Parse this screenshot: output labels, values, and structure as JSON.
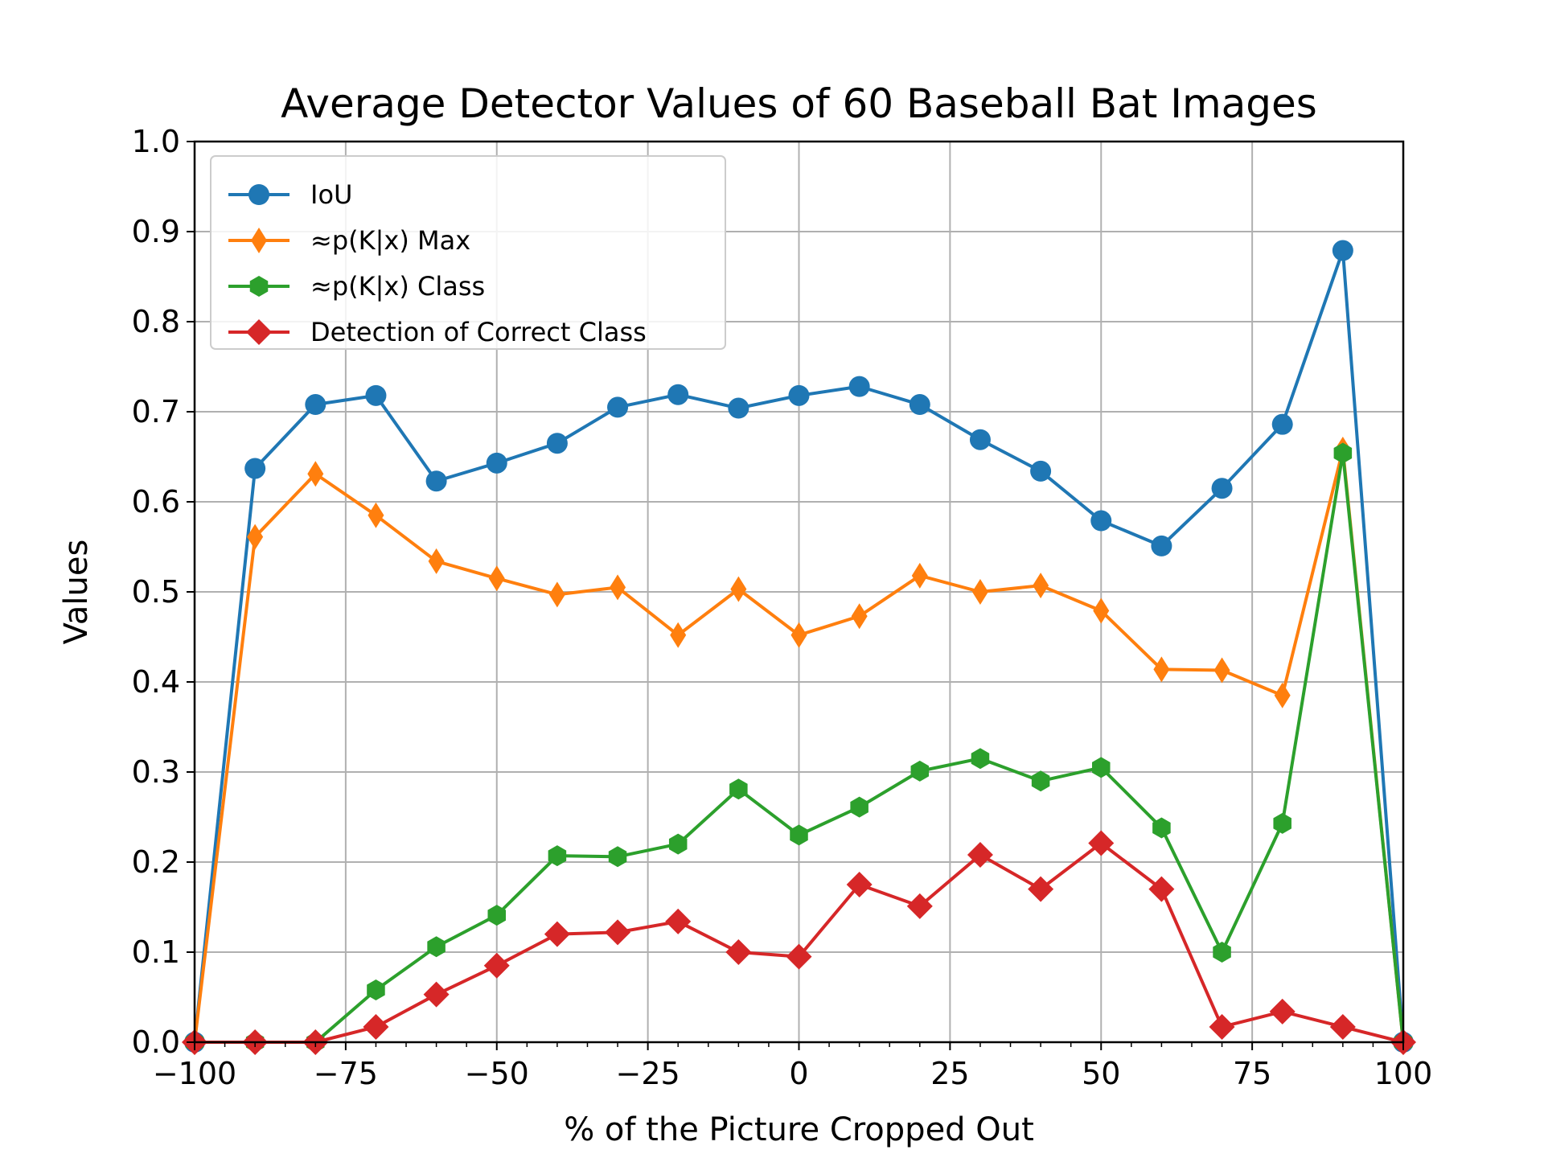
{
  "chart_data": {
    "type": "line",
    "title": "Average Detector Values of 60 Baseball Bat Images",
    "xlabel": "% of the Picture Cropped Out",
    "ylabel": "Values",
    "xlim": [
      -100,
      100
    ],
    "ylim": [
      0.0,
      1.0
    ],
    "x_ticks": [
      -100,
      -75,
      -50,
      -25,
      0,
      25,
      50,
      75,
      100
    ],
    "x_tick_labels": [
      "−100",
      "−75",
      "−50",
      "−25",
      "0",
      "25",
      "50",
      "75",
      "100"
    ],
    "y_ticks": [
      0.0,
      0.1,
      0.2,
      0.3,
      0.4,
      0.5,
      0.6,
      0.7,
      0.8,
      0.9,
      1.0
    ],
    "y_tick_labels": [
      "0.0",
      "0.1",
      "0.2",
      "0.3",
      "0.4",
      "0.5",
      "0.6",
      "0.7",
      "0.8",
      "0.9",
      "1.0"
    ],
    "grid": true,
    "legend_position": "top-left",
    "x": [
      -100,
      -90,
      -80,
      -70,
      -60,
      -50,
      -40,
      -30,
      -20,
      -10,
      0,
      10,
      20,
      30,
      40,
      50,
      60,
      70,
      80,
      90,
      100
    ],
    "series": [
      {
        "name": "IoU",
        "color": "#1f77b4",
        "marker": "circle",
        "values": [
          0.0,
          0.637,
          0.708,
          0.718,
          0.623,
          0.643,
          0.665,
          0.705,
          0.719,
          0.704,
          0.718,
          0.728,
          0.708,
          0.669,
          0.634,
          0.579,
          0.551,
          0.615,
          0.686,
          0.879,
          0.0
        ]
      },
      {
        "name": "≈p(K|x) Max",
        "color": "#ff7f0e",
        "marker": "thin_diamond",
        "values": [
          0.0,
          0.561,
          0.631,
          0.585,
          0.534,
          0.515,
          0.497,
          0.505,
          0.452,
          0.503,
          0.452,
          0.473,
          0.518,
          0.5,
          0.507,
          0.479,
          0.414,
          0.413,
          0.385,
          0.658,
          0.0
        ]
      },
      {
        "name": "≈p(K|x) Class",
        "color": "#2ca02c",
        "marker": "hexagon",
        "values": [
          0.0,
          0.0,
          0.0,
          0.058,
          0.106,
          0.141,
          0.207,
          0.206,
          0.22,
          0.281,
          0.23,
          0.261,
          0.301,
          0.315,
          0.29,
          0.305,
          0.238,
          0.1,
          0.243,
          0.654,
          0.0
        ]
      },
      {
        "name": "Detection of Correct Class",
        "color": "#d62728",
        "marker": "diamond",
        "values": [
          0.0,
          0.0,
          0.0,
          0.017,
          0.053,
          0.085,
          0.12,
          0.122,
          0.134,
          0.1,
          0.095,
          0.175,
          0.151,
          0.208,
          0.17,
          0.221,
          0.17,
          0.017,
          0.034,
          0.017,
          0.0
        ]
      }
    ]
  }
}
